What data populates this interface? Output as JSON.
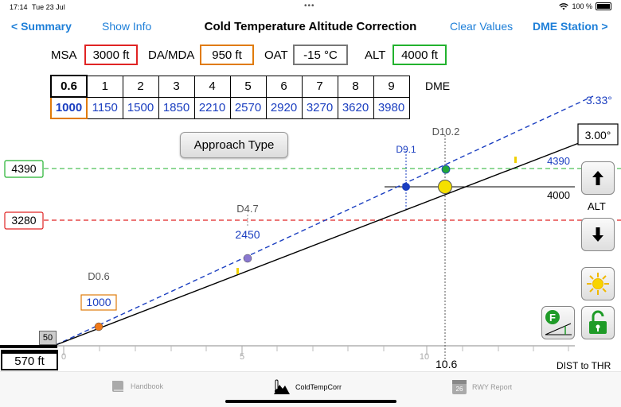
{
  "status": {
    "time": "17:14",
    "date": "Tue 23 Jul",
    "battery": "100 %"
  },
  "nav": {
    "back": "< Summary",
    "show_info": "Show Info",
    "title": "Cold Temperature Altitude Correction",
    "clear": "Clear Values",
    "dme_station": "DME Station >"
  },
  "inputs": {
    "msa_label": "MSA",
    "msa_value": "3000 ft",
    "damda_label": "DA/MDA",
    "damda_value": "950 ft",
    "oat_label": "OAT",
    "oat_value": "-15 °C",
    "alt_label": "ALT",
    "alt_value": "4000 ft"
  },
  "dme_table": {
    "headers": [
      "0.6",
      "1",
      "2",
      "3",
      "4",
      "5",
      "6",
      "7",
      "8",
      "9"
    ],
    "values": [
      "1000",
      "1150",
      "1500",
      "1850",
      "2210",
      "2570",
      "2920",
      "3270",
      "3620",
      "3980"
    ],
    "label": "DME"
  },
  "approach_button": "Approach Type",
  "graph": {
    "level_green": "4390",
    "level_red": "3280",
    "angle_blue": "3.33°",
    "angle_black": "3.00°",
    "d102": "D10.2",
    "d91": "D9.1",
    "d47": "D4.7",
    "d06": "D0.6",
    "val_4390": "4390",
    "val_4000": "4000",
    "val_2450": "2450",
    "val_1000": "1000",
    "tick_0": "0",
    "tick_5": "5",
    "tick_10": "10",
    "lbl_106": "10.6",
    "lbl_570": "570 ft",
    "lbl_50": "50",
    "dist_thr": "DIST to THR"
  },
  "side": {
    "alt": "ALT"
  },
  "colors": {
    "accent": "#1e7fd8",
    "red": "#e02424",
    "green": "#22b22e",
    "orange": "#e07b0a",
    "blue": "#1a3ec0"
  },
  "tabs": [
    {
      "label": "Handbook",
      "icon": "book-icon"
    },
    {
      "label": "ColdTempCorr",
      "icon": "cold-temp-icon"
    },
    {
      "label": "RWY Report",
      "icon": "calendar-icon",
      "badge": "26"
    }
  ]
}
